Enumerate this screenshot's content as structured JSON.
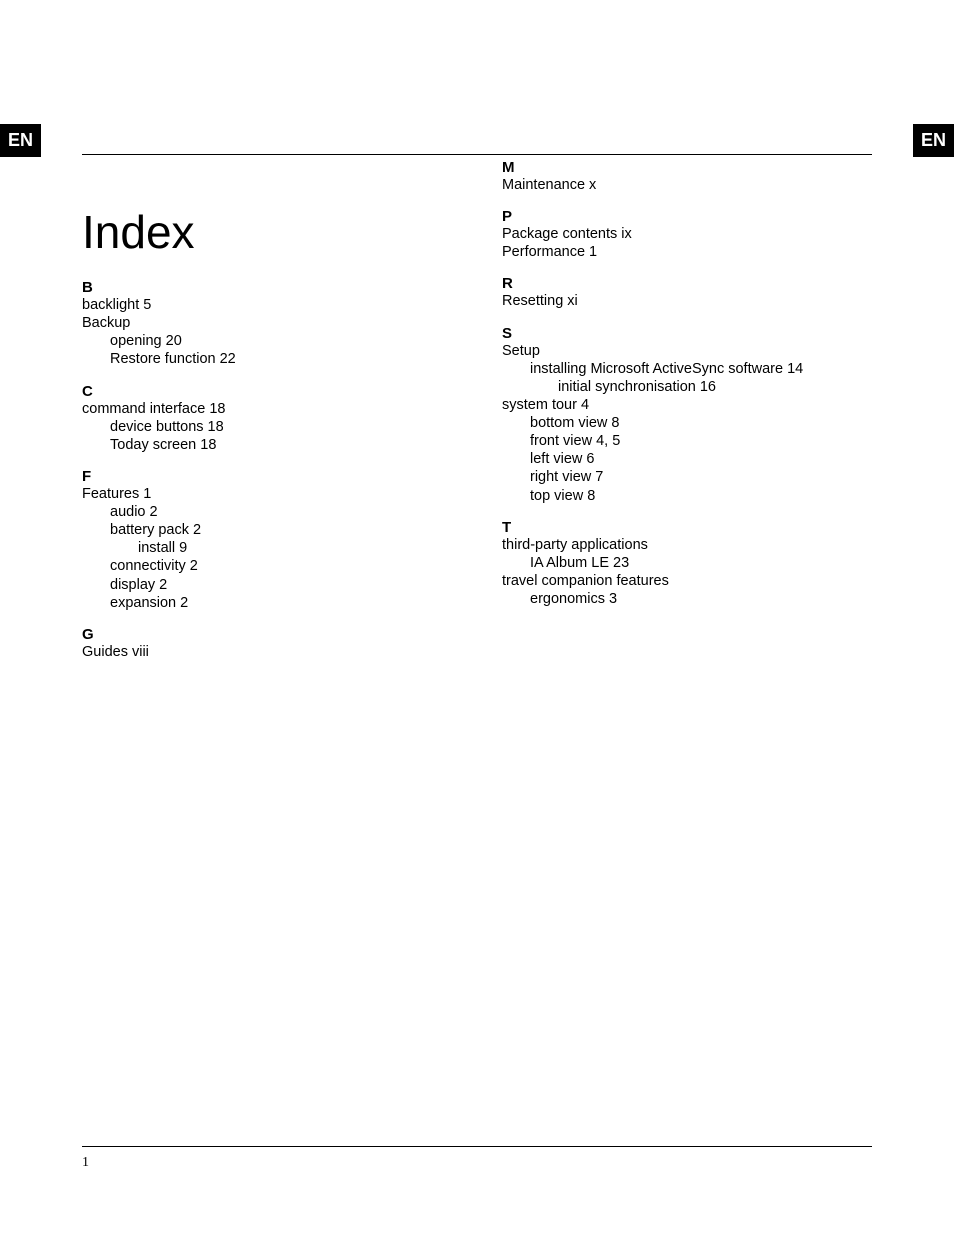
{
  "lang_label": "EN",
  "page_title": "Index",
  "page_number": "1",
  "columns": {
    "left": [
      {
        "kind": "letter",
        "text": "B"
      },
      {
        "kind": "entry",
        "level": 0,
        "text": "backlight",
        "page": "5"
      },
      {
        "kind": "entry",
        "level": 0,
        "text": "Backup",
        "page": ""
      },
      {
        "kind": "entry",
        "level": 1,
        "text": "opening",
        "page": "20"
      },
      {
        "kind": "entry",
        "level": 1,
        "text": "Restore function",
        "page": "22"
      },
      {
        "kind": "letter",
        "text": "C"
      },
      {
        "kind": "entry",
        "level": 0,
        "text": "command interface",
        "page": "18"
      },
      {
        "kind": "entry",
        "level": 1,
        "text": "device buttons",
        "page": "18"
      },
      {
        "kind": "entry",
        "level": 1,
        "text": "Today screen",
        "page": "18"
      },
      {
        "kind": "letter",
        "text": "F"
      },
      {
        "kind": "entry",
        "level": 0,
        "text": "Features",
        "page": "1"
      },
      {
        "kind": "entry",
        "level": 1,
        "text": "audio",
        "page": "2"
      },
      {
        "kind": "entry",
        "level": 1,
        "text": "battery pack",
        "page": "2"
      },
      {
        "kind": "entry",
        "level": 2,
        "text": "install",
        "page": "9"
      },
      {
        "kind": "entry",
        "level": 1,
        "text": "connectivity",
        "page": "2"
      },
      {
        "kind": "entry",
        "level": 1,
        "text": "display",
        "page": "2"
      },
      {
        "kind": "entry",
        "level": 1,
        "text": "expansion",
        "page": "2"
      },
      {
        "kind": "letter",
        "text": "G"
      },
      {
        "kind": "entry",
        "level": 0,
        "text": "Guides",
        "page": "viii"
      }
    ],
    "right": [
      {
        "kind": "letter",
        "text": "M"
      },
      {
        "kind": "entry",
        "level": 0,
        "text": "Maintenance",
        "page": "x"
      },
      {
        "kind": "letter",
        "text": "P"
      },
      {
        "kind": "entry",
        "level": 0,
        "text": "Package contents",
        "page": "ix"
      },
      {
        "kind": "entry",
        "level": 0,
        "text": "Performance",
        "page": "1"
      },
      {
        "kind": "letter",
        "text": "R"
      },
      {
        "kind": "entry",
        "level": 0,
        "text": "Resetting",
        "page": "xi"
      },
      {
        "kind": "letter",
        "text": "S"
      },
      {
        "kind": "entry",
        "level": 0,
        "text": "Setup",
        "page": ""
      },
      {
        "kind": "entry",
        "level": 1,
        "text": "installing Microsoft ActiveSync software",
        "page": "14"
      },
      {
        "kind": "entry",
        "level": 2,
        "text": "initial synchronisation",
        "page": "16"
      },
      {
        "kind": "entry",
        "level": 0,
        "text": "system tour",
        "page": "4"
      },
      {
        "kind": "entry",
        "level": 1,
        "text": "bottom view",
        "page": "8"
      },
      {
        "kind": "entry",
        "level": 1,
        "text": "front view",
        "page": "4, 5"
      },
      {
        "kind": "entry",
        "level": 1,
        "text": "left view",
        "page": "6"
      },
      {
        "kind": "entry",
        "level": 1,
        "text": "right view",
        "page": "7"
      },
      {
        "kind": "entry",
        "level": 1,
        "text": "top view",
        "page": "8"
      },
      {
        "kind": "letter",
        "text": "T"
      },
      {
        "kind": "entry",
        "level": 0,
        "text": "third-party applications",
        "page": ""
      },
      {
        "kind": "entry",
        "level": 1,
        "text": "IA Album LE",
        "page": "23"
      },
      {
        "kind": "entry",
        "level": 0,
        "text": "travel companion features",
        "page": ""
      },
      {
        "kind": "entry",
        "level": 1,
        "text": "ergonomics",
        "page": "3"
      }
    ]
  }
}
